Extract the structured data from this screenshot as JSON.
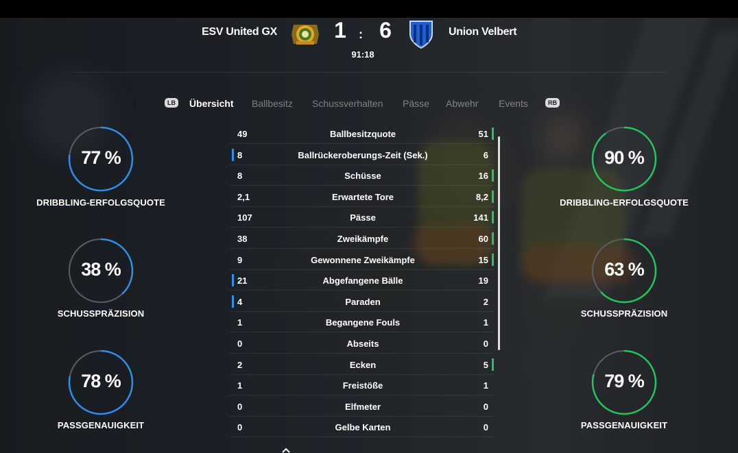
{
  "match": {
    "home_team": "ESV United GX",
    "away_team": "Union Velbert",
    "home_score": "1",
    "away_score": "6",
    "separator": ":",
    "clock": "91:18"
  },
  "tabs": {
    "left_button": "LB",
    "right_button": "RB",
    "items": [
      {
        "label": "Übersicht",
        "active": true
      },
      {
        "label": "Ballbesitz",
        "active": false
      },
      {
        "label": "Schussverhalten",
        "active": false
      },
      {
        "label": "Pässe",
        "active": false
      },
      {
        "label": "Abwehr",
        "active": false
      },
      {
        "label": "Events",
        "active": false
      }
    ]
  },
  "stats": [
    {
      "label": "Ballbesitzquote",
      "home": "49",
      "away": "51",
      "leader": "away"
    },
    {
      "label": "Ballrückeroberungs-Zeit (Sek.)",
      "home": "8",
      "away": "6",
      "leader": "home"
    },
    {
      "label": "Schüsse",
      "home": "8",
      "away": "16",
      "leader": "away"
    },
    {
      "label": "Erwartete Tore",
      "home": "2,1",
      "away": "8,2",
      "leader": "away"
    },
    {
      "label": "Pässe",
      "home": "107",
      "away": "141",
      "leader": "away"
    },
    {
      "label": "Zweikämpfe",
      "home": "38",
      "away": "60",
      "leader": "away"
    },
    {
      "label": "Gewonnene Zweikämpfe",
      "home": "9",
      "away": "15",
      "leader": "away"
    },
    {
      "label": "Abgefangene Bälle",
      "home": "21",
      "away": "19",
      "leader": "home"
    },
    {
      "label": "Paraden",
      "home": "4",
      "away": "2",
      "leader": "home"
    },
    {
      "label": "Begangene Fouls",
      "home": "1",
      "away": "1",
      "leader": "none"
    },
    {
      "label": "Abseits",
      "home": "0",
      "away": "0",
      "leader": "none"
    },
    {
      "label": "Ecken",
      "home": "2",
      "away": "5",
      "leader": "away"
    },
    {
      "label": "Freistöße",
      "home": "1",
      "away": "1",
      "leader": "none"
    },
    {
      "label": "Elfmeter",
      "home": "0",
      "away": "0",
      "leader": "none"
    },
    {
      "label": "Gelbe Karten",
      "home": "0",
      "away": "0",
      "leader": "none"
    }
  ],
  "rings": {
    "home": [
      {
        "pct_text": "77 %",
        "value": 0.77,
        "label": "DRIBBLING-ERFOLGSQUOTE"
      },
      {
        "pct_text": "38 %",
        "value": 0.38,
        "label": "SCHUSSPRÄZISION"
      },
      {
        "pct_text": "78 %",
        "value": 0.78,
        "label": "PASSGENAUIGKEIT"
      }
    ],
    "away": [
      {
        "pct_text": "90 %",
        "value": 0.9,
        "label": "DRIBBLING-ERFOLGSQUOTE"
      },
      {
        "pct_text": "63 %",
        "value": 0.63,
        "label": "SCHUSSPRÄZISION"
      },
      {
        "pct_text": "79 %",
        "value": 0.79,
        "label": "PASSGENAUIGKEIT"
      }
    ]
  },
  "colors": {
    "home_accent": "#2f8fe8",
    "away_accent": "#22c55e",
    "ring_track": "#5a5f63"
  },
  "icons": {
    "home_crest": "esv-united-crest-icon",
    "away_crest": "union-velbert-crest-icon"
  }
}
